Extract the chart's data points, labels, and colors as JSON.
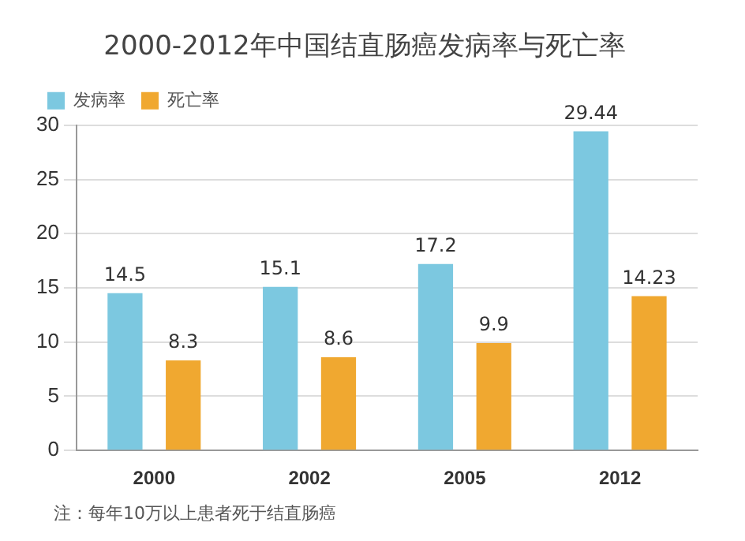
{
  "chart_data": {
    "type": "bar",
    "title": "2000-2012年中国结直肠癌发病率与死亡率",
    "categories": [
      "2000",
      "2002",
      "2005",
      "2012"
    ],
    "series": [
      {
        "name": "发病率",
        "color": "#7cc8e0",
        "values": [
          14.5,
          15.1,
          17.2,
          29.44
        ]
      },
      {
        "name": "死亡率",
        "color": "#f0a830",
        "values": [
          8.3,
          8.6,
          9.9,
          14.23
        ]
      }
    ],
    "ylim": [
      0,
      30
    ],
    "yticks": [
      0,
      5,
      10,
      15,
      20,
      25,
      30
    ],
    "grid": "y",
    "legend": "top left",
    "data_labels": true,
    "annotations": [
      "注：每年10万以上患者死于结直肠癌"
    ]
  }
}
